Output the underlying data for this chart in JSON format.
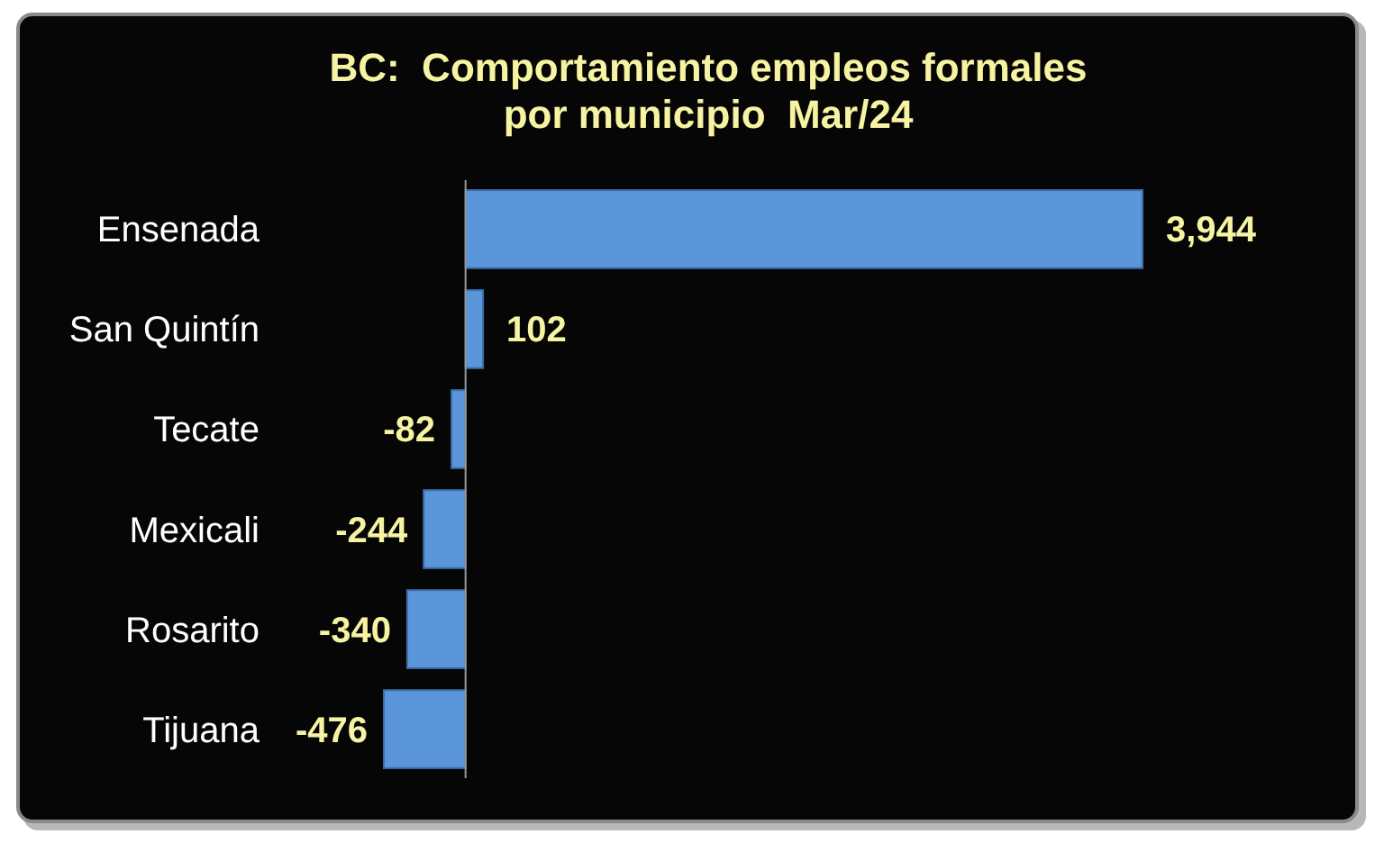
{
  "chart_data": {
    "type": "bar",
    "orientation": "horizontal",
    "title": "BC:  Comportamiento empleos formales\npor municipio  Mar/24",
    "categories": [
      "Ensenada",
      "San Quintín",
      "Tecate",
      "Mexicali",
      "Rosarito",
      "Tijuana"
    ],
    "values": [
      3944,
      102,
      -82,
      -244,
      -340,
      -476
    ],
    "value_labels": [
      "3,944",
      "102",
      "-82",
      "-244",
      "-340",
      "-476"
    ],
    "color": "#5b95da",
    "tick_labels": "y"
  }
}
